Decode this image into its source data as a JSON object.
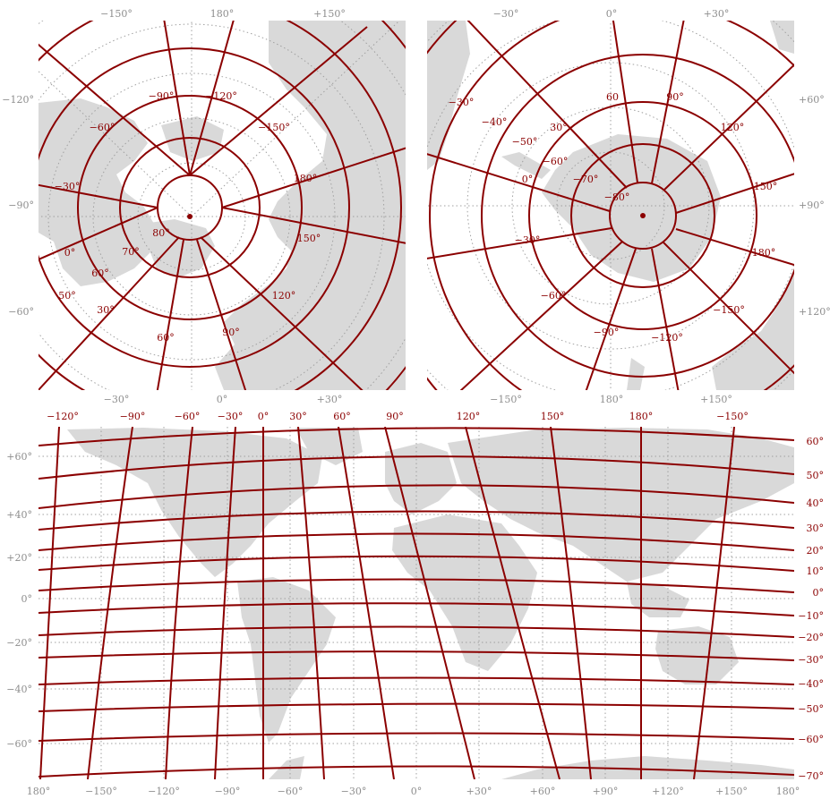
{
  "colors": {
    "land": "#d9d9d9",
    "grid": "#8b0000",
    "tick_text": "#8e8e8e",
    "graticule": "#a0a0a0",
    "background": "#ffffff"
  },
  "north_panel": {
    "top_ticks": [
      "−150°",
      "180°",
      "+150°"
    ],
    "bottom_ticks": [
      "−30°",
      "0°",
      "+30°"
    ],
    "left_ticks": [
      "−120°",
      "−90°",
      "−60°"
    ],
    "meridian_labels": [
      "−90°",
      "−120°",
      "−60°",
      "−150°",
      "−30°",
      "180°",
      "0°",
      "150°",
      "30°",
      "120°",
      "60°",
      "90°"
    ],
    "parallel_labels": [
      "80°",
      "70°",
      "60°",
      "50°"
    ]
  },
  "south_panel": {
    "top_ticks": [
      "−30°",
      "0°",
      "+30°"
    ],
    "bottom_ticks": [
      "−150°",
      "180°",
      "+150°"
    ],
    "right_ticks": [
      "+60°",
      "+90°",
      "+120°"
    ],
    "meridian_labels": [
      "−30°",
      "60",
      "90°",
      "30°",
      "120°",
      "0°",
      "150°",
      "−30°",
      "180°",
      "−60°",
      "−150°",
      "−90°",
      "−120°"
    ],
    "parallel_labels": [
      "−40°",
      "−50°",
      "−60°",
      "−70°",
      "−80°"
    ]
  },
  "world_panel": {
    "top_labels": [
      "−120°",
      "−90°",
      "−60°",
      "−30°",
      "0°",
      "30°",
      "60°",
      "90°",
      "120°",
      "150°",
      "180°",
      "−150°"
    ],
    "left_ticks": [
      "+60°",
      "+40°",
      "+20°",
      "0°",
      "−20°",
      "−40°",
      "−60°"
    ],
    "right_labels": [
      "60°",
      "50°",
      "40°",
      "30°",
      "20°",
      "10°",
      "0°",
      "−10°",
      "−20°",
      "−30°",
      "−40°",
      "−50°",
      "−60°",
      "−70°"
    ],
    "bottom_ticks": [
      "180°",
      "−150°",
      "−120°",
      "−90°",
      "−60°",
      "−30°",
      "0°",
      "+30°",
      "+60°",
      "+90°",
      "+120°",
      "+150°",
      "180°"
    ]
  }
}
